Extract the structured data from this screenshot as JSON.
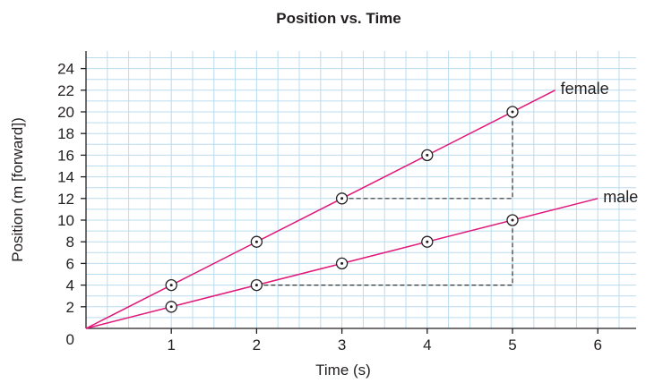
{
  "chart_data": {
    "type": "line",
    "title": "Position vs. Time",
    "xlabel": "Time (s)",
    "ylabel": "Position (m [forward])",
    "xlim": [
      0,
      6.5
    ],
    "ylim": [
      0,
      25
    ],
    "origin_label": "0",
    "xticks": [
      "1",
      "2",
      "3",
      "4",
      "5",
      "6"
    ],
    "yticks": [
      "2",
      "4",
      "6",
      "8",
      "10",
      "12",
      "14",
      "16",
      "18",
      "20",
      "22",
      "24"
    ],
    "grid": true,
    "series": [
      {
        "name": "female",
        "color": "#e0187a",
        "line": [
          [
            0,
            0
          ],
          [
            5.5,
            22
          ]
        ],
        "points": [
          [
            1,
            4
          ],
          [
            2,
            8
          ],
          [
            3,
            12
          ],
          [
            4,
            16
          ],
          [
            5,
            20
          ]
        ]
      },
      {
        "name": "male",
        "color": "#e0187a",
        "line": [
          [
            0,
            0
          ],
          [
            6,
            12
          ]
        ],
        "points": [
          [
            1,
            2
          ],
          [
            2,
            4
          ],
          [
            3,
            6
          ],
          [
            4,
            8
          ],
          [
            5,
            10
          ]
        ]
      }
    ],
    "guides": [
      [
        [
          3,
          12
        ],
        [
          5,
          12
        ],
        [
          5,
          20
        ]
      ],
      [
        [
          2,
          4
        ],
        [
          5,
          4
        ],
        [
          5,
          10
        ]
      ]
    ]
  }
}
